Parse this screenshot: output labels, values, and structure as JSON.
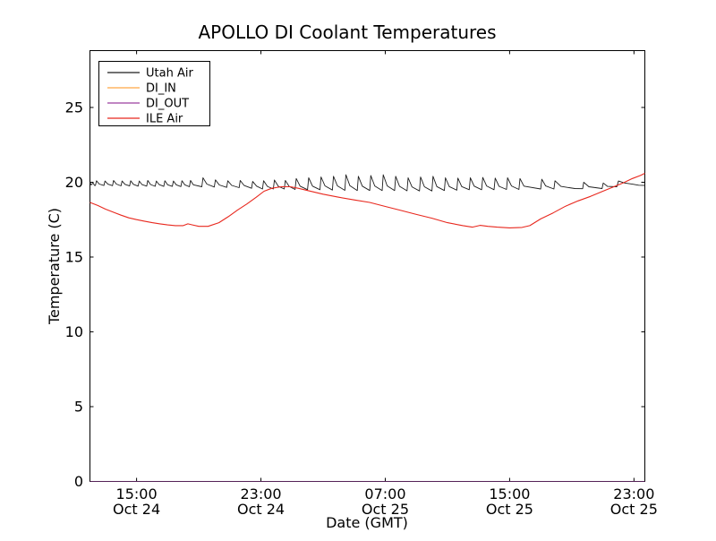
{
  "chart_data": {
    "type": "line",
    "title": "APOLLO DI Coolant Temperatures",
    "xlabel": "Date (GMT)",
    "ylabel": "Temperature (C)",
    "grid": false,
    "legend_position": "upper left",
    "x_unit": "hours since Oct 24 00:00 GMT",
    "xlim": [
      12.0,
      47.7
    ],
    "ylim": [
      0,
      28.8
    ],
    "x_ticks": [
      {
        "value": 15,
        "time": "15:00",
        "date": "Oct 24"
      },
      {
        "value": 23,
        "time": "23:00",
        "date": "Oct 24"
      },
      {
        "value": 31,
        "time": "07:00",
        "date": "Oct 25"
      },
      {
        "value": 39,
        "time": "15:00",
        "date": "Oct 25"
      },
      {
        "value": 47,
        "time": "23:00",
        "date": "Oct 25"
      }
    ],
    "y_ticks": [
      0,
      5,
      10,
      15,
      20,
      25
    ],
    "series": [
      {
        "name": "Utah Air",
        "color": "#1c1c1c",
        "points": [
          [
            12.0,
            20.0
          ],
          [
            12.08,
            19.82
          ],
          [
            12.2,
            19.95
          ],
          [
            12.3,
            19.78
          ],
          [
            12.35,
            19.78
          ],
          [
            12.42,
            20.1
          ],
          [
            12.6,
            19.88
          ],
          [
            12.9,
            19.78
          ],
          [
            12.97,
            20.08
          ],
          [
            13.15,
            19.87
          ],
          [
            13.45,
            19.77
          ],
          [
            13.52,
            20.12
          ],
          [
            13.7,
            19.88
          ],
          [
            14.0,
            19.76
          ],
          [
            14.07,
            20.08
          ],
          [
            14.25,
            19.86
          ],
          [
            14.55,
            19.75
          ],
          [
            14.62,
            20.1
          ],
          [
            14.8,
            19.86
          ],
          [
            15.1,
            19.74
          ],
          [
            15.17,
            20.08
          ],
          [
            15.35,
            19.84
          ],
          [
            15.65,
            19.74
          ],
          [
            15.72,
            20.12
          ],
          [
            15.9,
            19.85
          ],
          [
            16.2,
            19.73
          ],
          [
            16.27,
            20.08
          ],
          [
            16.45,
            19.84
          ],
          [
            16.75,
            19.72
          ],
          [
            16.82,
            20.1
          ],
          [
            17.0,
            19.83
          ],
          [
            17.3,
            19.72
          ],
          [
            17.37,
            20.08
          ],
          [
            17.55,
            19.83
          ],
          [
            17.85,
            19.71
          ],
          [
            17.92,
            20.1
          ],
          [
            18.1,
            19.83
          ],
          [
            18.4,
            19.7
          ],
          [
            18.47,
            20.12
          ],
          [
            18.65,
            19.83
          ],
          [
            19.2,
            19.7
          ],
          [
            19.27,
            20.3
          ],
          [
            19.52,
            19.88
          ],
          [
            20.0,
            19.68
          ],
          [
            20.07,
            20.16
          ],
          [
            20.32,
            19.82
          ],
          [
            20.8,
            19.66
          ],
          [
            20.87,
            20.1
          ],
          [
            21.12,
            19.79
          ],
          [
            21.6,
            19.64
          ],
          [
            21.67,
            20.12
          ],
          [
            21.92,
            19.78
          ],
          [
            22.4,
            19.6
          ],
          [
            22.47,
            20.05
          ],
          [
            22.72,
            19.74
          ],
          [
            23.1,
            19.55
          ],
          [
            23.17,
            20.1
          ],
          [
            23.42,
            19.72
          ],
          [
            23.8,
            19.55
          ],
          [
            23.87,
            20.15
          ],
          [
            24.12,
            19.73
          ],
          [
            24.5,
            19.55
          ],
          [
            24.57,
            20.12
          ],
          [
            24.82,
            19.72
          ],
          [
            25.2,
            19.52
          ],
          [
            25.27,
            20.25
          ],
          [
            25.52,
            19.74
          ],
          [
            26.0,
            19.5
          ],
          [
            26.07,
            20.3
          ],
          [
            26.32,
            19.74
          ],
          [
            26.8,
            19.5
          ],
          [
            26.87,
            20.35
          ],
          [
            27.12,
            19.76
          ],
          [
            27.6,
            19.48
          ],
          [
            27.67,
            20.4
          ],
          [
            27.92,
            19.76
          ],
          [
            28.4,
            19.46
          ],
          [
            28.47,
            20.5
          ],
          [
            28.72,
            19.77
          ],
          [
            29.2,
            19.45
          ],
          [
            29.27,
            20.4
          ],
          [
            29.52,
            19.74
          ],
          [
            30.0,
            19.45
          ],
          [
            30.07,
            20.45
          ],
          [
            30.32,
            19.75
          ],
          [
            30.8,
            19.44
          ],
          [
            30.87,
            20.5
          ],
          [
            31.12,
            19.76
          ],
          [
            31.6,
            19.44
          ],
          [
            31.67,
            20.4
          ],
          [
            31.92,
            19.73
          ],
          [
            32.4,
            19.43
          ],
          [
            32.47,
            20.3
          ],
          [
            32.72,
            19.69
          ],
          [
            33.2,
            19.42
          ],
          [
            33.27,
            20.35
          ],
          [
            33.52,
            19.7
          ],
          [
            34.0,
            19.42
          ],
          [
            34.07,
            20.4
          ],
          [
            34.32,
            19.71
          ],
          [
            34.8,
            19.45
          ],
          [
            34.87,
            20.3
          ],
          [
            35.12,
            19.71
          ],
          [
            35.6,
            19.47
          ],
          [
            35.67,
            20.28
          ],
          [
            35.92,
            19.71
          ],
          [
            36.4,
            19.5
          ],
          [
            36.47,
            20.3
          ],
          [
            36.72,
            19.74
          ],
          [
            37.2,
            19.5
          ],
          [
            37.27,
            20.32
          ],
          [
            37.52,
            19.75
          ],
          [
            38.0,
            19.5
          ],
          [
            38.07,
            20.28
          ],
          [
            38.32,
            19.73
          ],
          [
            38.8,
            19.52
          ],
          [
            38.87,
            20.3
          ],
          [
            39.12,
            19.75
          ],
          [
            39.6,
            19.52
          ],
          [
            39.67,
            20.25
          ],
          [
            39.92,
            19.74
          ],
          [
            41.0,
            19.55
          ],
          [
            41.07,
            20.2
          ],
          [
            41.32,
            19.75
          ],
          [
            41.85,
            19.55
          ],
          [
            41.92,
            20.1
          ],
          [
            42.3,
            19.72
          ],
          [
            43.2,
            19.58
          ],
          [
            43.7,
            19.57
          ],
          [
            43.77,
            20.0
          ],
          [
            44.1,
            19.7
          ],
          [
            44.95,
            19.58
          ],
          [
            45.02,
            19.95
          ],
          [
            45.3,
            19.72
          ],
          [
            45.9,
            19.7
          ],
          [
            46.0,
            20.08
          ],
          [
            46.4,
            19.95
          ],
          [
            46.9,
            19.87
          ],
          [
            47.3,
            19.8
          ],
          [
            47.7,
            19.78
          ]
        ]
      },
      {
        "name": "DI_IN",
        "color": "#ffa843",
        "points": [
          [
            12.0,
            0
          ],
          [
            47.7,
            0
          ]
        ]
      },
      {
        "name": "DI_OUT",
        "color": "#9a3f9f",
        "points": [
          [
            12.0,
            0
          ],
          [
            47.7,
            0
          ]
        ]
      },
      {
        "name": "ILE Air",
        "color": "#e8281e",
        "points": [
          [
            12.0,
            18.65
          ],
          [
            12.5,
            18.45
          ],
          [
            13.0,
            18.2
          ],
          [
            13.5,
            18.0
          ],
          [
            14.0,
            17.8
          ],
          [
            14.5,
            17.62
          ],
          [
            15.0,
            17.5
          ],
          [
            15.5,
            17.4
          ],
          [
            16.0,
            17.3
          ],
          [
            16.5,
            17.22
          ],
          [
            17.0,
            17.15
          ],
          [
            17.5,
            17.1
          ],
          [
            18.0,
            17.1
          ],
          [
            18.3,
            17.22
          ],
          [
            18.6,
            17.15
          ],
          [
            19.0,
            17.05
          ],
          [
            19.6,
            17.05
          ],
          [
            20.3,
            17.3
          ],
          [
            20.9,
            17.7
          ],
          [
            21.5,
            18.15
          ],
          [
            22.1,
            18.55
          ],
          [
            22.7,
            19.0
          ],
          [
            23.2,
            19.4
          ],
          [
            23.7,
            19.6
          ],
          [
            24.3,
            19.7
          ],
          [
            24.9,
            19.7
          ],
          [
            25.4,
            19.6
          ],
          [
            26.0,
            19.45
          ],
          [
            27.0,
            19.2
          ],
          [
            28.0,
            19.0
          ],
          [
            29.0,
            18.82
          ],
          [
            30.0,
            18.65
          ],
          [
            31.0,
            18.38
          ],
          [
            32.0,
            18.12
          ],
          [
            33.0,
            17.85
          ],
          [
            34.0,
            17.6
          ],
          [
            35.0,
            17.3
          ],
          [
            36.0,
            17.1
          ],
          [
            36.6,
            17.0
          ],
          [
            37.1,
            17.12
          ],
          [
            37.6,
            17.05
          ],
          [
            38.2,
            17.0
          ],
          [
            39.0,
            16.95
          ],
          [
            39.8,
            16.98
          ],
          [
            40.3,
            17.1
          ],
          [
            41.0,
            17.55
          ],
          [
            41.8,
            17.95
          ],
          [
            42.6,
            18.4
          ],
          [
            43.4,
            18.75
          ],
          [
            44.2,
            19.05
          ],
          [
            45.0,
            19.4
          ],
          [
            45.7,
            19.7
          ],
          [
            46.3,
            19.95
          ],
          [
            46.9,
            20.25
          ],
          [
            47.4,
            20.45
          ],
          [
            47.7,
            20.6
          ]
        ]
      }
    ]
  }
}
